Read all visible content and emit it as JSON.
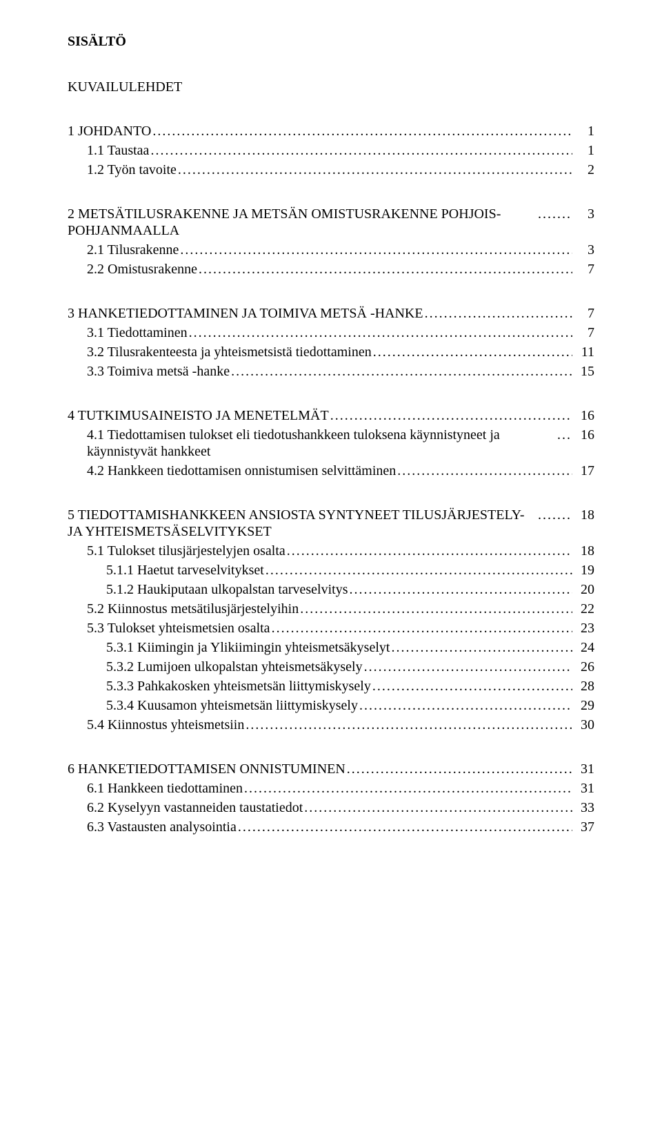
{
  "title": "SISÄLTÖ",
  "kuvailu": "KUVAILULEHDET",
  "toc": [
    {
      "level": 1,
      "label": "1 JOHDANTO",
      "page": "1",
      "gap": true
    },
    {
      "level": 2,
      "label": "1.1 Taustaa",
      "page": "1"
    },
    {
      "level": 2,
      "label": "1.2 Työn tavoite",
      "page": "2"
    },
    {
      "level": 1,
      "label": "2 METSÄTILUSRAKENNE JA METSÄN OMISTUSRAKENNE POHJOIS-POHJANMAALLA",
      "page": "3",
      "gap": true,
      "wrap": true
    },
    {
      "level": 2,
      "label": "2.1 Tilusrakenne",
      "page": "3"
    },
    {
      "level": 2,
      "label": "2.2 Omistusrakenne",
      "page": "7"
    },
    {
      "level": 1,
      "label": "3 HANKETIEDOTTAMINEN JA TOIMIVA METSÄ -HANKE",
      "page": "7",
      "gap": true
    },
    {
      "level": 2,
      "label": "3.1 Tiedottaminen",
      "page": "7"
    },
    {
      "level": 2,
      "label": "3.2 Tilusrakenteesta ja yhteismetsistä tiedottaminen",
      "page": "11"
    },
    {
      "level": 2,
      "label": "3.3 Toimiva metsä -hanke",
      "page": "15"
    },
    {
      "level": 1,
      "label": "4 TUTKIMUSAINEISTO JA MENETELMÄT",
      "page": "16",
      "gap": true
    },
    {
      "level": 2,
      "label": "4.1 Tiedottamisen tulokset eli tiedotushankkeen tuloksena käynnistyneet ja käynnistyvät hankkeet",
      "page": "16",
      "wrap": true
    },
    {
      "level": 2,
      "label": "4.2 Hankkeen tiedottamisen onnistumisen selvittäminen",
      "page": "17"
    },
    {
      "level": 1,
      "label": "5 TIEDOTTAMISHANKKEEN ANSIOSTA SYNTYNEET TILUSJÄRJESTELY- JA YHTEISMETSÄSELVITYKSET",
      "page": "18",
      "gap": true,
      "wrap": true
    },
    {
      "level": 2,
      "label": "5.1 Tulokset tilusjärjestelyjen osalta",
      "page": "18"
    },
    {
      "level": 3,
      "label": "5.1.1 Haetut tarveselvitykset",
      "page": "19"
    },
    {
      "level": 3,
      "label": "5.1.2 Haukiputaan ulkopalstan tarveselvitys",
      "page": "20"
    },
    {
      "level": 2,
      "label": "5.2 Kiinnostus metsätilusjärjestelyihin",
      "page": "22"
    },
    {
      "level": 2,
      "label": "5.3 Tulokset yhteismetsien osalta",
      "page": "23"
    },
    {
      "level": 3,
      "label": "5.3.1 Kiimingin ja Ylikiimingin yhteismetsäkyselyt",
      "page": "24"
    },
    {
      "level": 3,
      "label": "5.3.2 Lumijoen ulkopalstan yhteismetsäkysely",
      "page": "26"
    },
    {
      "level": 3,
      "label": "5.3.3 Pahkakosken yhteismetsän liittymiskysely",
      "page": "28"
    },
    {
      "level": 3,
      "label": "5.3.4 Kuusamon yhteismetsän liittymiskysely",
      "page": "29"
    },
    {
      "level": 2,
      "label": "5.4 Kiinnostus yhteismetsiin",
      "page": "30"
    },
    {
      "level": 1,
      "label": "6 HANKETIEDOTTAMISEN ONNISTUMINEN",
      "page": "31",
      "gap": true
    },
    {
      "level": 2,
      "label": "6.1 Hankkeen tiedottaminen",
      "page": "31"
    },
    {
      "level": 2,
      "label": "6.2 Kyselyyn vastanneiden taustatiedot",
      "page": "33"
    },
    {
      "level": 2,
      "label": "6.3 Vastausten analysointia",
      "page": "37"
    }
  ]
}
